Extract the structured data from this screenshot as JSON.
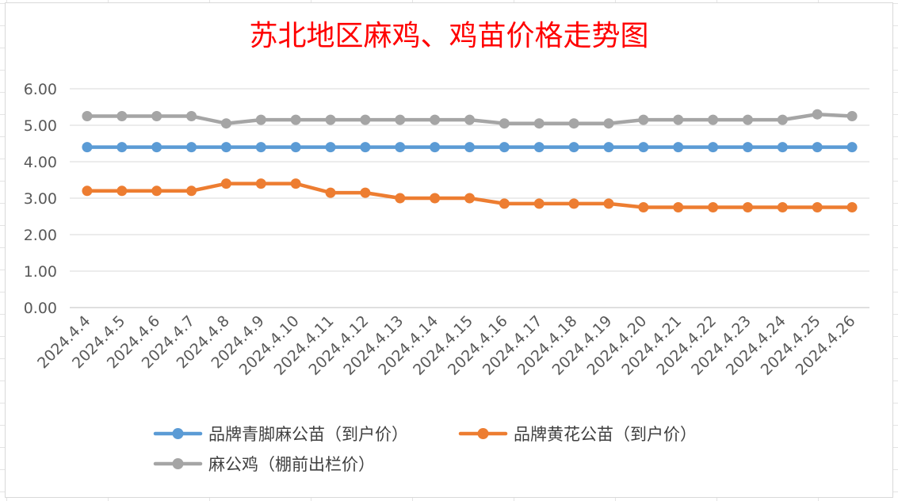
{
  "chart_data": {
    "type": "line",
    "title": "苏北地区麻鸡、鸡苗价格走势图",
    "xlabel": "",
    "ylabel": "",
    "ylim": [
      0,
      6
    ],
    "yticks": [
      "0.00",
      "1.00",
      "2.00",
      "3.00",
      "4.00",
      "5.00",
      "6.00"
    ],
    "grid": true,
    "legend_position": "bottom",
    "categories": [
      "2024.4.4",
      "2024.4.5",
      "2024.4.6",
      "2024.4.7",
      "2024.4.8",
      "2024.4.9",
      "2024.4.10",
      "2024.4.11",
      "2024.4.12",
      "2024.4.13",
      "2024.4.14",
      "2024.4.15",
      "2024.4.16",
      "2024.4.17",
      "2024.4.18",
      "2024.4.19",
      "2024.4.20",
      "2024.4.21",
      "2024.4.22",
      "2024.4.23",
      "2024.4.24",
      "2024.4.25",
      "2024.4.26"
    ],
    "series": [
      {
        "name": "品牌青脚麻公苗（到户价）",
        "color": "#5b9bd5",
        "values": [
          4.4,
          4.4,
          4.4,
          4.4,
          4.4,
          4.4,
          4.4,
          4.4,
          4.4,
          4.4,
          4.4,
          4.4,
          4.4,
          4.4,
          4.4,
          4.4,
          4.4,
          4.4,
          4.4,
          4.4,
          4.4,
          4.4,
          4.4
        ]
      },
      {
        "name": "品牌黄花公苗（到户价）",
        "color": "#ed7d31",
        "values": [
          3.2,
          3.2,
          3.2,
          3.2,
          3.4,
          3.4,
          3.4,
          3.15,
          3.15,
          3.0,
          3.0,
          3.0,
          2.85,
          2.85,
          2.85,
          2.85,
          2.75,
          2.75,
          2.75,
          2.75,
          2.75,
          2.75,
          2.75
        ]
      },
      {
        "name": "麻公鸡（棚前出栏价）",
        "color": "#a5a5a5",
        "values": [
          5.25,
          5.25,
          5.25,
          5.25,
          5.05,
          5.15,
          5.15,
          5.15,
          5.15,
          5.15,
          5.15,
          5.15,
          5.05,
          5.05,
          5.05,
          5.05,
          5.15,
          5.15,
          5.15,
          5.15,
          5.15,
          5.3,
          5.25
        ]
      }
    ]
  }
}
